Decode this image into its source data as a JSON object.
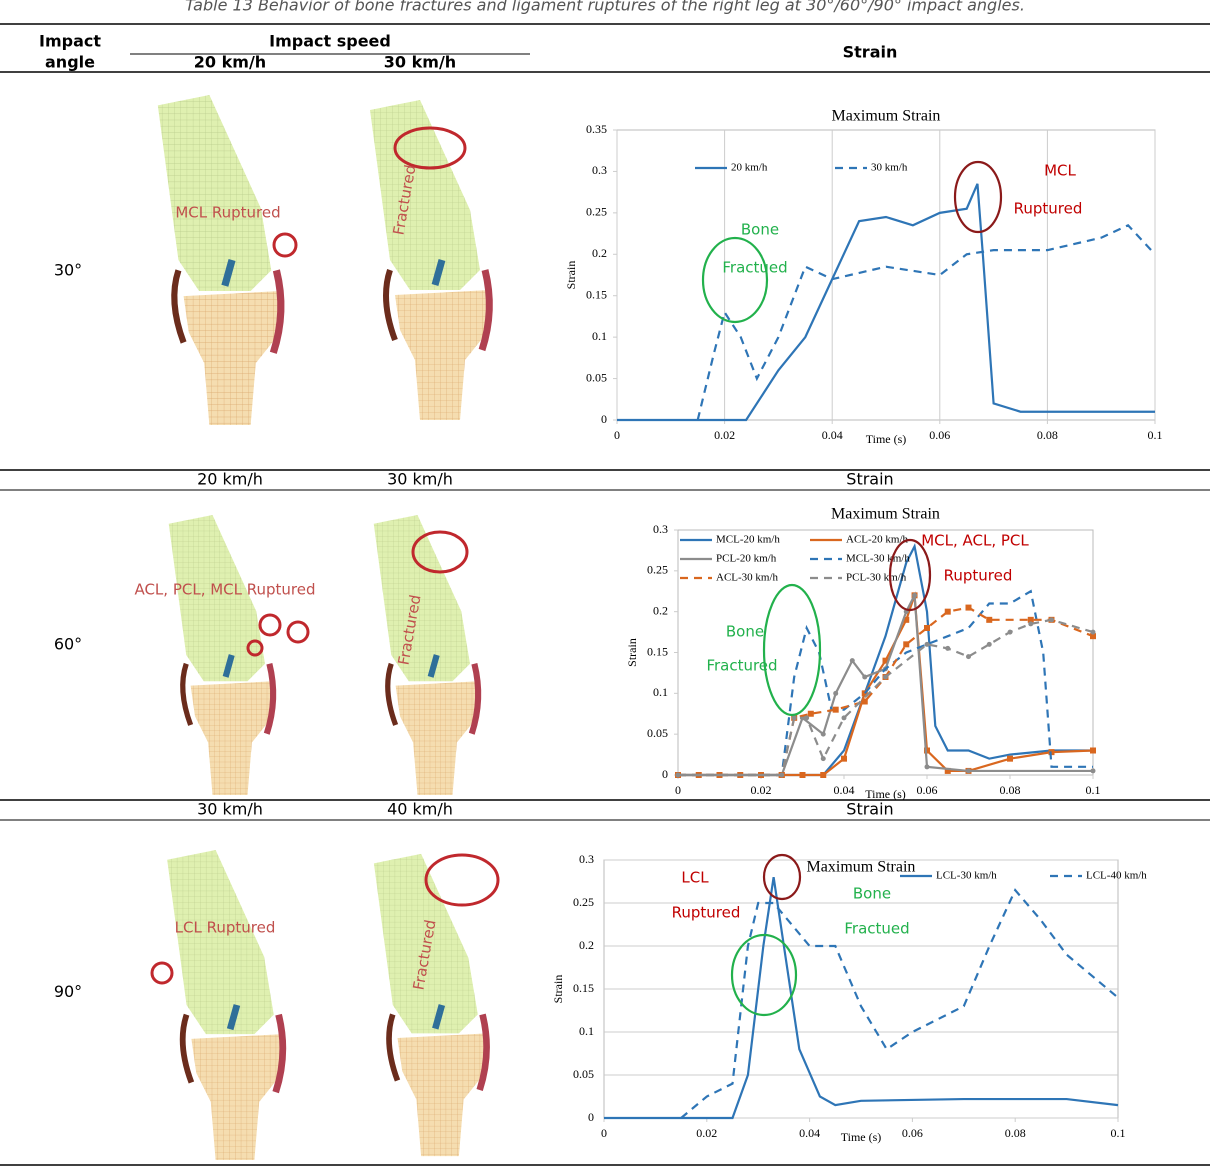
{
  "caption": "Table 13  Behavior of bone fractures and ligament ruptures of the right leg at 30°/60°/90° impact angles.",
  "header": {
    "impact_angle": [
      "Impact",
      "angle"
    ],
    "impact_speed": "Impact speed",
    "speeds": [
      "20 km/h",
      "30 km/h"
    ],
    "strain": "Strain"
  },
  "rows": [
    {
      "angle": "30°",
      "images": [
        "MCL Ruptured",
        "Fractured"
      ],
      "chart": {
        "type": "line",
        "title": "Maximum Strain",
        "x_label": "Time (s)",
        "y_label": "Strain",
        "xlim": [
          0,
          0.1
        ],
        "ylim": [
          0,
          0.35
        ],
        "xticks": [
          0,
          0.02,
          0.04,
          0.06,
          0.08,
          0.1
        ],
        "yticks": [
          0,
          0.05,
          0.1,
          0.15,
          0.2,
          0.25,
          0.3,
          0.35
        ],
        "grid": "x",
        "series": [
          {
            "name": "20 km/h",
            "color": "#2e75b6",
            "dash": false,
            "x": [
              0,
              0.02,
              0.024,
              0.03,
              0.035,
              0.04,
              0.045,
              0.05,
              0.055,
              0.06,
              0.065,
              0.067,
              0.068,
              0.07,
              0.075,
              0.08,
              0.1
            ],
            "values": [
              0,
              0,
              0,
              0.06,
              0.1,
              0.17,
              0.24,
              0.245,
              0.235,
              0.25,
              0.255,
              0.285,
              0.2,
              0.02,
              0.01,
              0.01,
              0.01
            ]
          },
          {
            "name": "30 km/h",
            "color": "#2e75b6",
            "dash": true,
            "x": [
              0.015,
              0.018,
              0.02,
              0.023,
              0.026,
              0.03,
              0.035,
              0.04,
              0.05,
              0.06,
              0.065,
              0.07,
              0.08,
              0.09,
              0.095,
              0.1
            ],
            "values": [
              0,
              0.08,
              0.13,
              0.1,
              0.05,
              0.1,
              0.185,
              0.17,
              0.185,
              0.175,
              0.2,
              0.205,
              0.205,
              0.22,
              0.235,
              0.2
            ]
          }
        ],
        "annotations": [
          {
            "text": "MCL",
            "color": "#c00000"
          },
          {
            "text": "Ruptured",
            "color": "#c00000"
          },
          {
            "text": "Bone",
            "color": "#22b14c"
          },
          {
            "text": "Fractued",
            "color": "#22b14c"
          }
        ]
      }
    },
    {
      "speeds": [
        "20 km/h",
        "30 km/h"
      ],
      "strain": "Strain",
      "angle": "60°",
      "images": [
        "ACL, PCL, MCL Ruptured",
        "Fractured"
      ],
      "chart": {
        "type": "line",
        "title": "Maximum Strain",
        "x_label": "Time (s)",
        "y_label": "Strain",
        "xlim": [
          0,
          0.1
        ],
        "ylim": [
          0,
          0.3
        ],
        "xticks": [
          0,
          0.02,
          0.04,
          0.06,
          0.08,
          0.1
        ],
        "yticks": [
          0,
          0.05,
          0.1,
          0.15,
          0.2,
          0.25,
          0.3
        ],
        "grid": false,
        "series": [
          {
            "name": "MCL-20 km/h",
            "color": "#2e75b6",
            "dash": false,
            "x": [
              0,
              0.035,
              0.04,
              0.045,
              0.05,
              0.055,
              0.057,
              0.06,
              0.062,
              0.065,
              0.07,
              0.075,
              0.08,
              0.09,
              0.1
            ],
            "values": [
              0,
              0,
              0.03,
              0.1,
              0.17,
              0.26,
              0.28,
              0.2,
              0.06,
              0.03,
              0.03,
              0.02,
              0.025,
              0.03,
              0.03
            ]
          },
          {
            "name": "ACL-20 km/h",
            "color": "#d9671f",
            "dash": false,
            "marker": "square",
            "x": [
              0,
              0.005,
              0.01,
              0.015,
              0.02,
              0.025,
              0.03,
              0.035,
              0.04,
              0.045,
              0.05,
              0.055,
              0.057,
              0.06,
              0.065,
              0.07,
              0.08,
              0.09,
              0.1
            ],
            "values": [
              0,
              0,
              0,
              0,
              0,
              0,
              0,
              0,
              0.02,
              0.1,
              0.14,
              0.19,
              0.22,
              0.03,
              0.005,
              0.005,
              0.02,
              0.028,
              0.03
            ]
          },
          {
            "name": "PCL-20 km/h",
            "color": "#8c8c8c",
            "dash": false,
            "marker": "circle",
            "x": [
              0,
              0.025,
              0.03,
              0.035,
              0.038,
              0.042,
              0.045,
              0.05,
              0.055,
              0.057,
              0.06,
              0.07,
              0.1
            ],
            "values": [
              0,
              0,
              0.07,
              0.05,
              0.1,
              0.14,
              0.12,
              0.13,
              0.2,
              0.22,
              0.01,
              0.005,
              0.005
            ]
          },
          {
            "name": "MCL-30 km/h",
            "color": "#2e75b6",
            "dash": true,
            "x": [
              0,
              0.025,
              0.028,
              0.031,
              0.034,
              0.037,
              0.04,
              0.045,
              0.05,
              0.055,
              0.06,
              0.065,
              0.07,
              0.075,
              0.08,
              0.085,
              0.088,
              0.09,
              0.1
            ],
            "values": [
              0,
              0,
              0.12,
              0.18,
              0.15,
              0.08,
              0.08,
              0.1,
              0.13,
              0.15,
              0.16,
              0.17,
              0.18,
              0.21,
              0.21,
              0.225,
              0.15,
              0.01,
              0.01
            ]
          },
          {
            "name": "ACL-30 km/h",
            "color": "#d9671f",
            "dash": true,
            "marker": "square",
            "x": [
              0,
              0.025,
              0.028,
              0.032,
              0.038,
              0.045,
              0.05,
              0.055,
              0.06,
              0.065,
              0.07,
              0.075,
              0.085,
              0.09,
              0.1
            ],
            "values": [
              0,
              0,
              0.07,
              0.075,
              0.08,
              0.09,
              0.12,
              0.16,
              0.18,
              0.2,
              0.205,
              0.19,
              0.19,
              0.19,
              0.17
            ]
          },
          {
            "name": "PCL-30 km/h",
            "color": "#8c8c8c",
            "dash": true,
            "marker": "circle",
            "x": [
              0,
              0.025,
              0.028,
              0.031,
              0.035,
              0.04,
              0.05,
              0.06,
              0.065,
              0.07,
              0.075,
              0.08,
              0.085,
              0.09,
              0.1
            ],
            "values": [
              0,
              0,
              0.07,
              0.07,
              0.02,
              0.07,
              0.12,
              0.16,
              0.155,
              0.145,
              0.16,
              0.175,
              0.185,
              0.19,
              0.175
            ]
          }
        ],
        "annotations": [
          {
            "text": "MCL, ACL, PCL",
            "color": "#c00000"
          },
          {
            "text": "Ruptured",
            "color": "#c00000"
          },
          {
            "text": "Bone",
            "color": "#22b14c"
          },
          {
            "text": "Fractured",
            "color": "#22b14c"
          }
        ]
      }
    },
    {
      "speeds": [
        "30 km/h",
        "40 km/h"
      ],
      "strain": "Strain",
      "angle": "90°",
      "images": [
        "LCL Ruptured",
        "Fractured"
      ],
      "chart": {
        "type": "line",
        "title": "Maximum Strain",
        "x_label": "Time (s)",
        "y_label": "Strain",
        "xlim": [
          0,
          0.1
        ],
        "ylim": [
          0,
          0.3
        ],
        "xticks": [
          0,
          0.02,
          0.04,
          0.06,
          0.08,
          0.1
        ],
        "yticks": [
          0,
          0.05,
          0.1,
          0.15,
          0.2,
          0.25,
          0.3
        ],
        "grid": "y",
        "series": [
          {
            "name": "LCL-30 km/h",
            "color": "#2e75b6",
            "dash": false,
            "x": [
              0,
              0.025,
              0.028,
              0.031,
              0.033,
              0.035,
              0.038,
              0.042,
              0.045,
              0.05,
              0.07,
              0.09,
              0.1
            ],
            "values": [
              0,
              0,
              0.05,
              0.2,
              0.28,
              0.2,
              0.08,
              0.025,
              0.015,
              0.02,
              0.022,
              0.022,
              0.015
            ]
          },
          {
            "name": "LCL-40 km/h",
            "color": "#2e75b6",
            "dash": true,
            "x": [
              0.015,
              0.02,
              0.025,
              0.028,
              0.03,
              0.033,
              0.04,
              0.045,
              0.05,
              0.055,
              0.06,
              0.07,
              0.075,
              0.08,
              0.085,
              0.09,
              0.1
            ],
            "values": [
              0,
              0.025,
              0.04,
              0.2,
              0.25,
              0.25,
              0.2,
              0.2,
              0.13,
              0.08,
              0.1,
              0.13,
              0.2,
              0.265,
              0.23,
              0.19,
              0.14
            ]
          }
        ],
        "annotations": [
          {
            "text": "LCL",
            "color": "#c00000"
          },
          {
            "text": "Ruptured",
            "color": "#c00000"
          },
          {
            "text": "Bone",
            "color": "#22b14c"
          },
          {
            "text": "Fractued",
            "color": "#22b14c"
          }
        ]
      }
    }
  ]
}
